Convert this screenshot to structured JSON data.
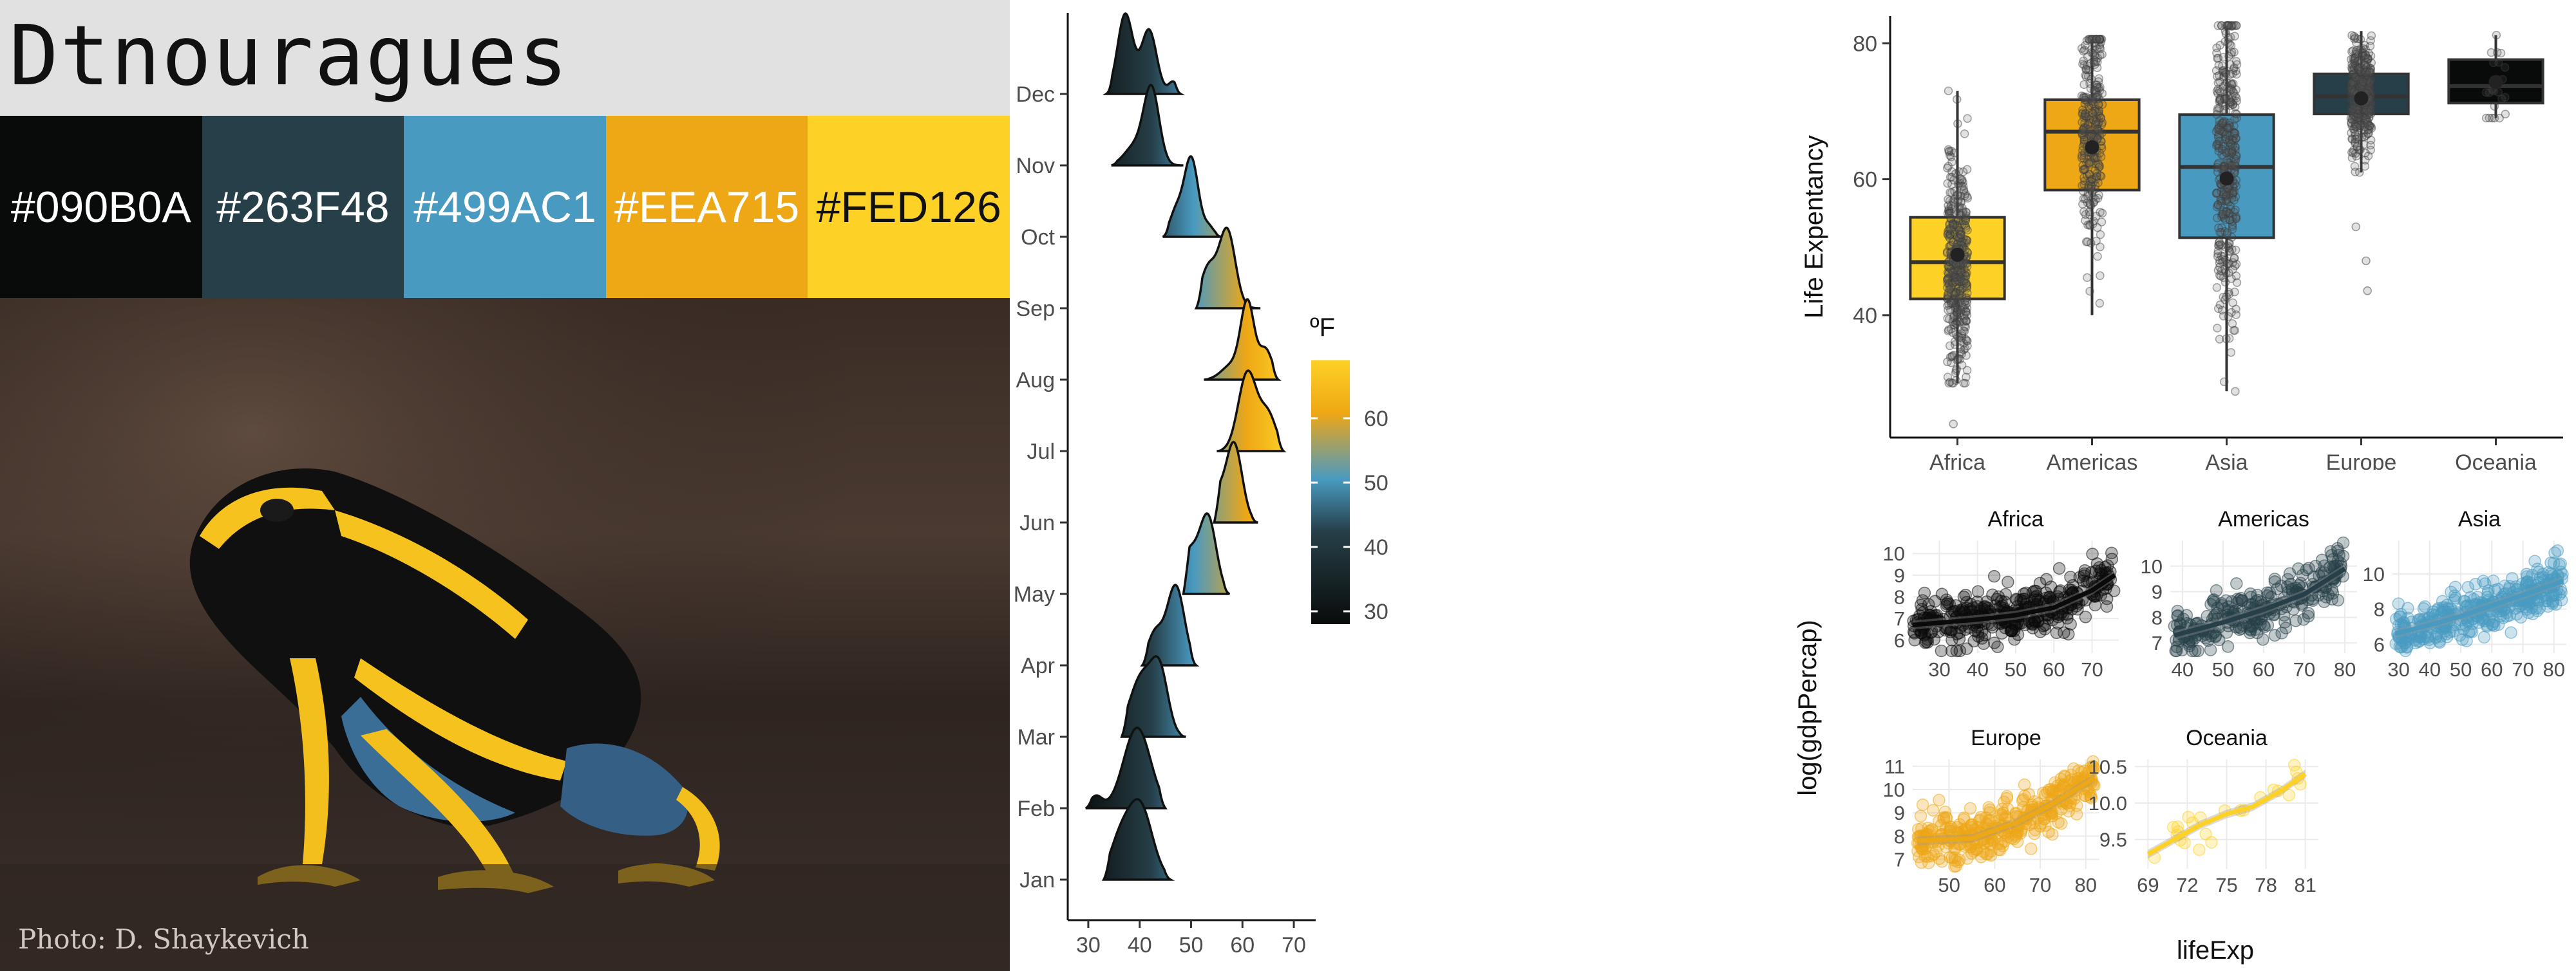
{
  "title": "Dtnouragues",
  "palette": [
    {
      "hex": "#090B0A",
      "color": "#090B0A",
      "text_color": "#ffffff"
    },
    {
      "hex": "#263F48",
      "color": "#263F48",
      "text_color": "#ffffff"
    },
    {
      "hex": "#499AC1",
      "color": "#499AC1",
      "text_color": "#ffffff"
    },
    {
      "hex": "#EEA715",
      "color": "#EEA715",
      "text_color": "#ffffff"
    },
    {
      "hex": "#FED126",
      "color": "#FED126",
      "text_color": "#111111"
    }
  ],
  "photo": {
    "credit": "Photo: D. Shaykevich"
  },
  "chart_data": [
    {
      "type": "ridgeline",
      "x_ticks": [
        "30",
        "40",
        "50",
        "60",
        "70"
      ],
      "xlim": [
        26,
        72
      ],
      "y_labels": [
        "Jan",
        "Feb",
        "Mar",
        "Apr",
        "May",
        "Jun",
        "Jul",
        "Aug",
        "Sep",
        "Oct",
        "Nov",
        "Dec"
      ],
      "legend": {
        "title": "ºF",
        "ticks": [
          "30",
          "40",
          "50",
          "60"
        ],
        "range": [
          28,
          69
        ]
      },
      "series": [
        {
          "label": "Jan",
          "peaks": [
            [
              40,
              2.4,
              1.0
            ],
            [
              36,
              2.0,
              0.45
            ]
          ],
          "range": [
            33,
            46
          ]
        },
        {
          "label": "Feb",
          "peaks": [
            [
              39.5,
              2.6,
              1.0
            ],
            [
              31.5,
              1.2,
              0.15
            ]
          ],
          "range": [
            29.5,
            45
          ]
        },
        {
          "label": "Mar",
          "peaks": [
            [
              40.5,
              2.4,
              0.9
            ],
            [
              44,
              1.6,
              0.8
            ]
          ],
          "range": [
            36.5,
            49
          ]
        },
        {
          "label": "Apr",
          "peaks": [
            [
              47,
              1.7,
              1.0
            ],
            [
              43,
              1.5,
              0.4
            ]
          ],
          "range": [
            40.5,
            51
          ]
        },
        {
          "label": "May",
          "peaks": [
            [
              53.3,
              1.6,
              1.0
            ],
            [
              49.5,
              1.8,
              0.55
            ]
          ],
          "range": [
            48.5,
            57.5
          ]
        },
        {
          "label": "Jun",
          "peaks": [
            [
              58.3,
              1.6,
              1.0
            ],
            [
              55,
              1.2,
              0.3
            ]
          ],
          "range": [
            54.5,
            63
          ]
        },
        {
          "label": "Jul",
          "peaks": [
            [
              61,
              1.8,
              1.0
            ],
            [
              65,
              1.6,
              0.45
            ]
          ],
          "range": [
            55,
            68
          ]
        },
        {
          "label": "Aug",
          "peaks": [
            [
              61,
              1.3,
              1.0
            ],
            [
              64.5,
              1.3,
              0.4
            ],
            [
              58,
              2.0,
              0.2
            ]
          ],
          "range": [
            52.5,
            67
          ]
        },
        {
          "label": "Sep",
          "peaks": [
            [
              57,
              1.6,
              1.0
            ],
            [
              53.3,
              1.5,
              0.5
            ]
          ],
          "range": [
            51,
            63.5
          ]
        },
        {
          "label": "Oct",
          "peaks": [
            [
              50,
              1.4,
              1.0
            ],
            [
              47,
              1.2,
              0.3
            ],
            [
              53.5,
              1.0,
              0.12
            ]
          ],
          "range": [
            44.5,
            56
          ]
        },
        {
          "label": "Nov",
          "peaks": [
            [
              42.3,
              1.5,
              1.0
            ],
            [
              39,
              2.0,
              0.25
            ]
          ],
          "range": [
            34.5,
            48.5
          ]
        },
        {
          "label": "Dec",
          "peaks": [
            [
              37.2,
              1.5,
              1.0
            ],
            [
              41.8,
              1.5,
              0.8
            ],
            [
              46.5,
              0.9,
              0.15
            ]
          ],
          "range": [
            33.5,
            48
          ]
        }
      ]
    },
    {
      "type": "box",
      "ylabel": "Life Expentancy",
      "categories": [
        "Africa",
        "Americas",
        "Asia",
        "Europe",
        "Oceania"
      ],
      "y_ticks": [
        "40",
        "60",
        "80"
      ],
      "ylim": [
        22,
        84
      ],
      "series": [
        {
          "name": "Africa",
          "min": 30,
          "q1": 42.4,
          "median": 47.8,
          "q3": 54.4,
          "max": 73,
          "mean": 48.9,
          "outliers": [
            24
          ],
          "n": 420,
          "color": "#FED126"
        },
        {
          "name": "Americas",
          "min": 40,
          "q1": 58.4,
          "median": 67.0,
          "q3": 71.7,
          "max": 80.6,
          "mean": 64.7,
          "outliers": [],
          "n": 300,
          "color": "#EEA715"
        },
        {
          "name": "Asia",
          "min": 28.8,
          "q1": 51.4,
          "median": 61.8,
          "q3": 69.5,
          "max": 82.6,
          "mean": 60.1,
          "outliers": [],
          "n": 396,
          "color": "#499AC1"
        },
        {
          "name": "Europe",
          "min": 61,
          "q1": 69.6,
          "median": 72.2,
          "q3": 75.5,
          "max": 81.8,
          "mean": 71.9,
          "outliers": [
            43.6,
            48,
            53
          ],
          "n": 360,
          "color": "#263F48"
        },
        {
          "name": "Oceania",
          "min": 69,
          "q1": 71.2,
          "median": 73.7,
          "q3": 77.6,
          "max": 81.2,
          "mean": 74.3,
          "outliers": [],
          "n": 24,
          "color": "#090B0A"
        }
      ]
    },
    {
      "type": "scatter",
      "xlabel": "lifeExp",
      "ylabel": "log(gdpPercap)",
      "panels": [
        {
          "title": "Africa",
          "color": "#090B0A",
          "xlim": [
            23,
            77
          ],
          "ylim": [
            5.4,
            10.6
          ],
          "x_ticks": [
            "30",
            "40",
            "50",
            "60",
            "70"
          ],
          "x_tick_values": [
            30,
            40,
            50,
            60,
            70
          ],
          "y_ticks": [
            "6",
            "7",
            "8",
            "9",
            "10"
          ],
          "y_tick_values": [
            6,
            7,
            8,
            9,
            10
          ],
          "trend": [
            [
              23,
              6.7
            ],
            [
              40,
              6.95
            ],
            [
              50,
              7.15
            ],
            [
              60,
              7.5
            ],
            [
              70,
              8.3
            ],
            [
              76,
              9.0
            ]
          ],
          "n": 400
        },
        {
          "title": "Americas",
          "color": "#263F48",
          "xlim": [
            37,
            83
          ],
          "ylim": [
            6.6,
            11.0
          ],
          "x_ticks": [
            "40",
            "50",
            "60",
            "70",
            "80"
          ],
          "x_tick_values": [
            40,
            50,
            60,
            70,
            80
          ],
          "y_ticks": [
            "7",
            "8",
            "9",
            "10"
          ],
          "y_tick_values": [
            7,
            8,
            9,
            10
          ],
          "trend": [
            [
              38,
              7.3
            ],
            [
              50,
              7.8
            ],
            [
              60,
              8.3
            ],
            [
              70,
              8.9
            ],
            [
              80,
              9.9
            ]
          ],
          "n": 300
        },
        {
          "title": "Asia",
          "color": "#499AC1",
          "xlim": [
            28,
            84
          ],
          "ylim": [
            5.5,
            11.9
          ],
          "x_ticks": [
            "30",
            "40",
            "50",
            "60",
            "70",
            "80"
          ],
          "x_tick_values": [
            30,
            40,
            50,
            60,
            70,
            80
          ],
          "y_ticks": [
            "6",
            "8",
            "10"
          ],
          "y_tick_values": [
            6,
            8,
            10
          ],
          "trend": [
            [
              29,
              6.6
            ],
            [
              40,
              7.1
            ],
            [
              50,
              7.6
            ],
            [
              60,
              8.2
            ],
            [
              70,
              8.8
            ],
            [
              83,
              9.6
            ]
          ],
          "n": 380
        },
        {
          "title": "Europe",
          "color": "#EEA715",
          "xlim": [
            42,
            83
          ],
          "ylim": [
            6.6,
            11.3
          ],
          "x_ticks": [
            "50",
            "60",
            "70",
            "80"
          ],
          "x_tick_values": [
            50,
            60,
            70,
            80
          ],
          "y_ticks": [
            "7",
            "8",
            "9",
            "10",
            "11"
          ],
          "y_tick_values": [
            7,
            8,
            9,
            10,
            11
          ],
          "trend": [
            [
              43,
              7.8
            ],
            [
              55,
              7.9
            ],
            [
              65,
              8.6
            ],
            [
              72,
              9.3
            ],
            [
              82,
              10.5
            ]
          ],
          "n": 360
        },
        {
          "title": "Oceania",
          "color": "#FED126",
          "xlim": [
            68,
            82
          ],
          "ylim": [
            9.1,
            10.6
          ],
          "x_ticks": [
            "69",
            "72",
            "75",
            "78",
            "81"
          ],
          "x_tick_values": [
            69,
            72,
            75,
            78,
            81
          ],
          "y_ticks": [
            "9.5",
            "10.0",
            "10.5"
          ],
          "y_tick_values": [
            9.5,
            10.0,
            10.5
          ],
          "trend": [
            [
              69,
              9.3
            ],
            [
              71,
              9.5
            ],
            [
              73,
              9.7
            ],
            [
              75,
              9.85
            ],
            [
              77,
              9.95
            ],
            [
              79,
              10.15
            ],
            [
              81,
              10.4
            ]
          ],
          "n": 24
        }
      ]
    }
  ]
}
